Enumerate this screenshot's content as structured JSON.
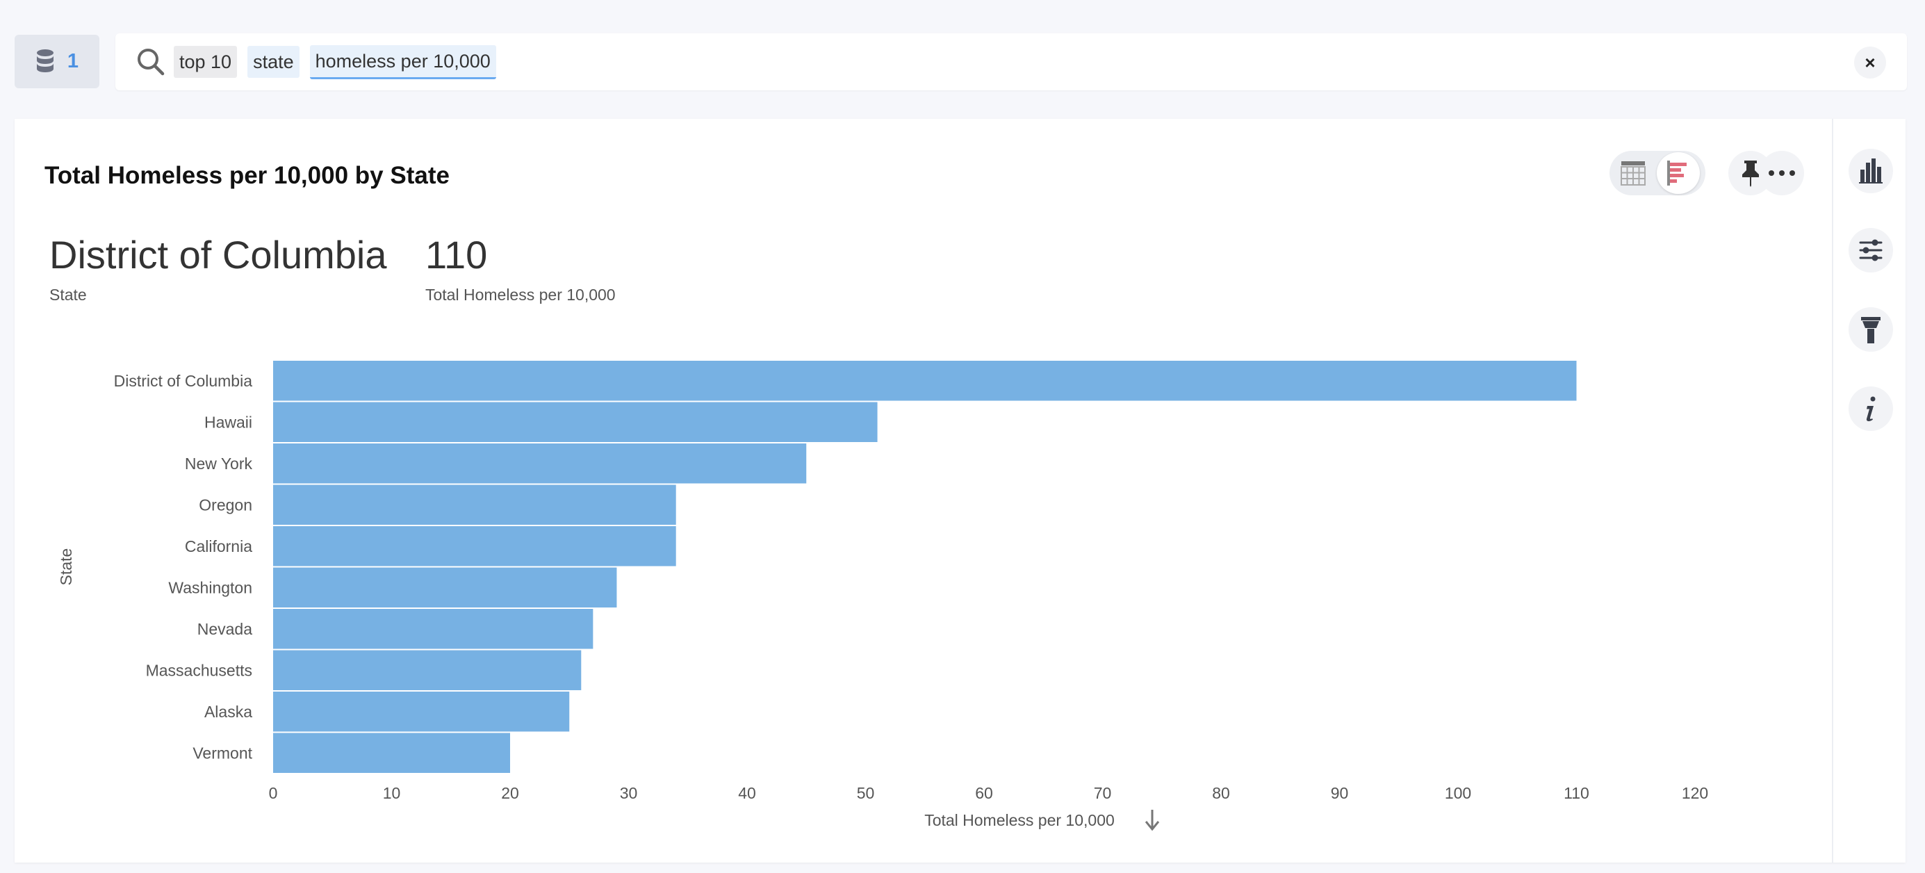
{
  "datasource": {
    "count": "1",
    "icon": "database-icon"
  },
  "search": {
    "tokens": [
      {
        "text": "top 10",
        "style": "gray"
      },
      {
        "text": "state",
        "style": "blue"
      },
      {
        "text": "homeless per 10,000",
        "style": "active"
      }
    ],
    "clear_icon": "close-icon",
    "clear_label": "×"
  },
  "answer": {
    "title": "Total Homeless per 10,000 by State",
    "headlines": [
      {
        "value": "District of Columbia",
        "label": "State"
      },
      {
        "value": "110",
        "label": "Total Homeless per 10,000"
      }
    ],
    "toolbar": [
      "table-view-icon",
      "bar-chart-view-icon",
      "pin-icon",
      "more-icon"
    ],
    "rail": [
      "chart-type-icon",
      "settings-icon",
      "format-brush-icon",
      "info-icon"
    ]
  },
  "chart_data": {
    "type": "bar",
    "orientation": "horizontal",
    "categories": [
      "District of Columbia",
      "Hawaii",
      "New York",
      "Oregon",
      "California",
      "Washington",
      "Nevada",
      "Massachusetts",
      "Alaska",
      "Vermont"
    ],
    "values": [
      110,
      51,
      45,
      34,
      34,
      29,
      27,
      26,
      25,
      20
    ],
    "xlabel": "Total Homeless per 10,000",
    "ylabel": "State",
    "xlim": [
      0,
      120
    ],
    "xticks": [
      0,
      10,
      20,
      30,
      40,
      50,
      60,
      70,
      80,
      90,
      100,
      110,
      120
    ],
    "sort": "descending",
    "color": "#77b1e3",
    "grid": false,
    "legend": "none"
  }
}
